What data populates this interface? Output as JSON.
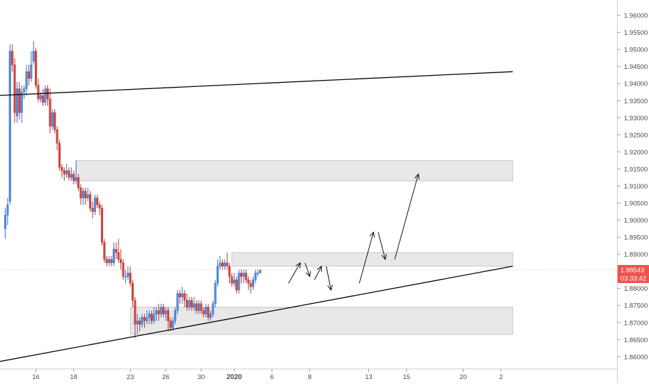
{
  "chart_data": {
    "type": "candlestick",
    "title": "",
    "xlabel": "",
    "ylabel": "",
    "ylim": [
      1.8565,
      1.9645
    ],
    "y_ticks": [
      1.96,
      1.955,
      1.95,
      1.945,
      1.94,
      1.935,
      1.93,
      1.925,
      1.92,
      1.915,
      1.91,
      1.905,
      1.9,
      1.895,
      1.89,
      1.885,
      1.88,
      1.875,
      1.87,
      1.865,
      1.86
    ],
    "y_tick_labels": [
      "1.96000",
      "1.95500",
      "1.95000",
      "1.94500",
      "1.94000",
      "1.93500",
      "1.93000",
      "1.92500",
      "1.92000",
      "1.91500",
      "1.91000",
      "1.90500",
      "1.90000",
      "1.89500",
      "1.89000",
      "1.88500",
      "1.88000",
      "1.87500",
      "1.87000",
      "1.86500",
      "1.86000"
    ],
    "x_ticks": [
      {
        "label": "16",
        "bar": 13,
        "bold": false
      },
      {
        "label": "18",
        "bar": 29,
        "bold": false
      },
      {
        "label": "23",
        "bar": 53,
        "bold": false
      },
      {
        "label": "26",
        "bar": 68,
        "bold": false
      },
      {
        "label": "30",
        "bar": 83,
        "bold": false
      },
      {
        "label": "2020",
        "bar": 97,
        "bold": true
      },
      {
        "label": "6",
        "bar": 113,
        "bold": false
      },
      {
        "label": "8",
        "bar": 129,
        "bold": false
      },
      {
        "label": "13",
        "bar": 154,
        "bold": false
      },
      {
        "label": "15",
        "bar": 170,
        "bold": false
      },
      {
        "label": "20",
        "bar": 194,
        "bold": false
      },
      {
        "label": "2",
        "bar": 210,
        "bold": false
      }
    ],
    "candles": [
      [
        1.8975,
        1.9015,
        1.8945,
        1.9035
      ],
      [
        1.9015,
        1.9045,
        1.8985,
        1.9065
      ],
      [
        1.9055,
        1.9495,
        1.9045,
        1.9515
      ],
      [
        1.9495,
        1.9455,
        1.9435,
        1.9515
      ],
      [
        1.9455,
        1.9315,
        1.9285,
        1.9475
      ],
      [
        1.9305,
        1.9385,
        1.9285,
        1.9405
      ],
      [
        1.9385,
        1.9315,
        1.9295,
        1.9405
      ],
      [
        1.9315,
        1.9375,
        1.9285,
        1.9395
      ],
      [
        1.9375,
        1.9385,
        1.9355,
        1.9395
      ],
      [
        1.9385,
        1.9435,
        1.9365,
        1.9455
      ],
      [
        1.9435,
        1.9415,
        1.9395,
        1.9455
      ],
      [
        1.9415,
        1.9455,
        1.9405,
        1.9495
      ],
      [
        1.9465,
        1.9495,
        1.9455,
        1.9525
      ],
      [
        1.9495,
        1.9395,
        1.9385,
        1.9505
      ],
      [
        1.9395,
        1.9355,
        1.9345,
        1.9415
      ],
      [
        1.9355,
        1.9365,
        1.9345,
        1.9375
      ],
      [
        1.9365,
        1.9345,
        1.9335,
        1.9385
      ],
      [
        1.9345,
        1.9385,
        1.9335,
        1.9395
      ],
      [
        1.9385,
        1.9355,
        1.9335,
        1.9395
      ],
      [
        1.9355,
        1.9275,
        1.9255,
        1.9385
      ],
      [
        1.9275,
        1.9315,
        1.9265,
        1.9325
      ],
      [
        1.9315,
        1.9265,
        1.9255,
        1.9325
      ],
      [
        1.9265,
        1.9225,
        1.9205,
        1.9275
      ],
      [
        1.9225,
        1.9155,
        1.9145,
        1.9235
      ],
      [
        1.9155,
        1.9145,
        1.9125,
        1.9165
      ],
      [
        1.9145,
        1.9135,
        1.9115,
        1.9155
      ],
      [
        1.9135,
        1.9145,
        1.9125,
        1.9165
      ],
      [
        1.9145,
        1.9125,
        1.9115,
        1.9155
      ],
      [
        1.9125,
        1.9135,
        1.9115,
        1.9155
      ],
      [
        1.9135,
        1.9115,
        1.9105,
        1.9145
      ],
      [
        1.9115,
        1.9125,
        1.9105,
        1.9175
      ],
      [
        1.9125,
        1.9095,
        1.9085,
        1.9135
      ],
      [
        1.9095,
        1.9065,
        1.9045,
        1.9105
      ],
      [
        1.9065,
        1.9085,
        1.9045,
        1.9095
      ],
      [
        1.9085,
        1.9065,
        1.9045,
        1.9095
      ],
      [
        1.9065,
        1.9075,
        1.9055,
        1.9095
      ],
      [
        1.9075,
        1.9035,
        1.9025,
        1.9085
      ],
      [
        1.9035,
        1.9025,
        1.9005,
        1.9055
      ],
      [
        1.9025,
        1.9065,
        1.9015,
        1.9075
      ],
      [
        1.9065,
        1.9045,
        1.9035,
        1.9075
      ],
      [
        1.9045,
        1.9035,
        1.9015,
        1.9055
      ],
      [
        1.9035,
        1.8935,
        1.8925,
        1.9045
      ],
      [
        1.8935,
        1.8885,
        1.8875,
        1.8945
      ],
      [
        1.8885,
        1.8875,
        1.8865,
        1.8895
      ],
      [
        1.8875,
        1.8885,
        1.8865,
        1.8895
      ],
      [
        1.8885,
        1.8875,
        1.8865,
        1.8895
      ],
      [
        1.8875,
        1.8915,
        1.8865,
        1.8935
      ],
      [
        1.8915,
        1.8905,
        1.8885,
        1.8935
      ],
      [
        1.8905,
        1.8885,
        1.8875,
        1.8945
      ],
      [
        1.8885,
        1.8875,
        1.8855,
        1.8915
      ],
      [
        1.8875,
        1.8835,
        1.8825,
        1.8885
      ],
      [
        1.8835,
        1.8835,
        1.8815,
        1.8855
      ],
      [
        1.8835,
        1.8845,
        1.8825,
        1.8865
      ],
      [
        1.8845,
        1.8815,
        1.8805,
        1.8865
      ],
      [
        1.8815,
        1.8765,
        1.8745,
        1.8825
      ],
      [
        1.8765,
        1.8695,
        1.8655,
        1.8775
      ],
      [
        1.8695,
        1.8705,
        1.8665,
        1.8725
      ],
      [
        1.8705,
        1.8695,
        1.8675,
        1.8715
      ],
      [
        1.8695,
        1.8715,
        1.8685,
        1.8725
      ],
      [
        1.8715,
        1.8705,
        1.8685,
        1.8725
      ],
      [
        1.8705,
        1.8715,
        1.8695,
        1.8735
      ],
      [
        1.8715,
        1.8725,
        1.8695,
        1.8735
      ],
      [
        1.8725,
        1.8705,
        1.8695,
        1.8735
      ],
      [
        1.8705,
        1.8725,
        1.8695,
        1.8745
      ],
      [
        1.8725,
        1.8735,
        1.8705,
        1.8745
      ],
      [
        1.8735,
        1.8725,
        1.8705,
        1.8755
      ],
      [
        1.8725,
        1.8745,
        1.8715,
        1.8755
      ],
      [
        1.8745,
        1.8725,
        1.8715,
        1.8755
      ],
      [
        1.8725,
        1.8735,
        1.8705,
        1.8745
      ],
      [
        1.8735,
        1.8705,
        1.8675,
        1.8745
      ],
      [
        1.8705,
        1.8685,
        1.8675,
        1.8715
      ],
      [
        1.8685,
        1.8705,
        1.8675,
        1.8715
      ],
      [
        1.8705,
        1.8735,
        1.8695,
        1.8745
      ],
      [
        1.8735,
        1.8785,
        1.8725,
        1.8795
      ],
      [
        1.8785,
        1.8775,
        1.8755,
        1.8795
      ],
      [
        1.8775,
        1.8785,
        1.8755,
        1.8805
      ],
      [
        1.8785,
        1.8765,
        1.8745,
        1.8795
      ],
      [
        1.8765,
        1.8745,
        1.8735,
        1.8785
      ],
      [
        1.8745,
        1.8765,
        1.8735,
        1.8775
      ],
      [
        1.8765,
        1.8745,
        1.8735,
        1.8775
      ],
      [
        1.8745,
        1.8755,
        1.8735,
        1.8775
      ],
      [
        1.8755,
        1.8735,
        1.8725,
        1.8765
      ],
      [
        1.8735,
        1.8755,
        1.8725,
        1.8765
      ],
      [
        1.8755,
        1.8735,
        1.8725,
        1.8765
      ],
      [
        1.8735,
        1.8725,
        1.8715,
        1.8745
      ],
      [
        1.8725,
        1.8745,
        1.8715,
        1.8755
      ],
      [
        1.8745,
        1.8715,
        1.8705,
        1.8755
      ],
      [
        1.8715,
        1.8725,
        1.8705,
        1.8735
      ],
      [
        1.8725,
        1.8755,
        1.8715,
        1.8765
      ],
      [
        1.8755,
        1.8815,
        1.8745,
        1.8825
      ],
      [
        1.8815,
        1.8865,
        1.8805,
        1.8885
      ],
      [
        1.8865,
        1.8875,
        1.8855,
        1.8895
      ],
      [
        1.8875,
        1.8865,
        1.8855,
        1.8885
      ],
      [
        1.8865,
        1.8875,
        1.8855,
        1.8885
      ],
      [
        1.8875,
        1.8865,
        1.8855,
        1.8905
      ],
      [
        1.8865,
        1.8835,
        1.8815,
        1.8875
      ],
      [
        1.8835,
        1.8815,
        1.8805,
        1.8845
      ],
      [
        1.8815,
        1.8825,
        1.8805,
        1.8845
      ],
      [
        1.8825,
        1.8795,
        1.8785,
        1.8835
      ],
      [
        1.8795,
        1.8845,
        1.8785,
        1.8855
      ],
      [
        1.8845,
        1.8835,
        1.8815,
        1.8855
      ],
      [
        1.8835,
        1.8845,
        1.8815,
        1.8855
      ],
      [
        1.8845,
        1.8825,
        1.8815,
        1.8855
      ],
      [
        1.8825,
        1.8815,
        1.8795,
        1.8835
      ],
      [
        1.8815,
        1.8805,
        1.8785,
        1.8825
      ],
      [
        1.8805,
        1.8825,
        1.8795,
        1.8835
      ],
      [
        1.8825,
        1.8845,
        1.8815,
        1.8855
      ],
      [
        1.8845,
        1.8845,
        1.8835,
        1.8855
      ],
      [
        1.8845,
        1.8854,
        1.8845,
        1.8855
      ]
    ],
    "trendlines": [
      {
        "name": "upper-trendline",
        "from": [
          -3,
          1.9365
        ],
        "to": [
          215,
          1.9435
        ]
      },
      {
        "name": "rising-support-trendline",
        "from": [
          -3,
          1.8585
        ],
        "to": [
          215,
          1.8865
        ]
      }
    ],
    "zones": [
      {
        "name": "supply-zone-top",
        "bar_from": 30,
        "bar_to": 215,
        "y_from": 1.9115,
        "y_to": 1.9175
      },
      {
        "name": "resistance-zone-middle",
        "bar_from": 96,
        "bar_to": 215,
        "y_from": 1.8865,
        "y_to": 1.8905
      },
      {
        "name": "demand-zone-bottom",
        "bar_from": 53,
        "bar_to": 215,
        "y_from": 1.8665,
        "y_to": 1.8745
      }
    ],
    "projection_arrows": [
      [
        [
          120,
          1.8815
        ],
        [
          125,
          1.8875
        ]
      ],
      [
        [
          127,
          1.8875
        ],
        [
          129,
          1.8835
        ]
      ],
      [
        [
          131,
          1.8825
        ],
        [
          134,
          1.8865
        ]
      ],
      [
        [
          136,
          1.8865
        ],
        [
          138,
          1.8795
        ]
      ],
      [
        [
          150,
          1.8815
        ],
        [
          156,
          1.8965
        ]
      ],
      [
        [
          158,
          1.8965
        ],
        [
          161,
          1.8885
        ]
      ],
      [
        [
          165,
          1.8885
        ],
        [
          175,
          1.9135
        ]
      ]
    ],
    "current_price": {
      "value": 1.88543,
      "label": "1.88543",
      "countdown": "03:33:42",
      "color": "#ef5350"
    },
    "colors": {
      "up": "#5b8dd6",
      "down": "#d6453d",
      "up_wick": "#2f6fcf",
      "down_wick": "#b8332d",
      "zone_fill": "#e0e0e0",
      "zone_border": "#bdbdbd",
      "axis_text": "#4a4a4a",
      "line": "#000000"
    },
    "grid": false
  }
}
